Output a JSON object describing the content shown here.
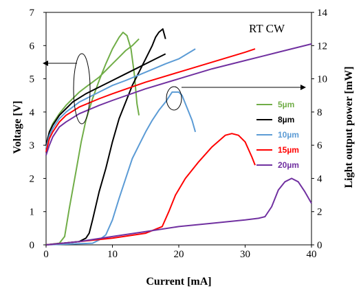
{
  "chart_data": {
    "type": "line",
    "annotation": "RT CW",
    "xlabel": "Current [mA]",
    "ylabel_left": "Voltage [V]",
    "ylabel_right": "Light output power [mW]",
    "x_ticks": [
      "0",
      "10",
      "20",
      "30",
      "40"
    ],
    "y_left_ticks": [
      "0",
      "1",
      "2",
      "3",
      "4",
      "5",
      "6",
      "7"
    ],
    "y_right_ticks": [
      "0",
      "2",
      "4",
      "6",
      "8",
      "10",
      "12",
      "14"
    ],
    "xlim": [
      0,
      40
    ],
    "ylim_left": [
      0,
      7
    ],
    "ylim_right": [
      0,
      14
    ],
    "legend_position": "right-middle",
    "series": [
      {
        "name": "5µm",
        "color": "#70ad47",
        "voltage": [
          [
            0,
            2.9
          ],
          [
            0.5,
            3.4
          ],
          [
            1,
            3.65
          ],
          [
            2,
            3.95
          ],
          [
            3,
            4.2
          ],
          [
            4,
            4.4
          ],
          [
            5,
            4.6
          ],
          [
            6,
            4.75
          ],
          [
            7,
            4.9
          ],
          [
            8,
            5.05
          ],
          [
            9,
            5.25
          ],
          [
            10,
            5.45
          ],
          [
            11,
            5.65
          ],
          [
            12,
            5.85
          ],
          [
            13,
            6.0
          ],
          [
            14,
            6.2
          ]
        ],
        "power": [
          [
            0,
            0
          ],
          [
            2,
            0.1
          ],
          [
            2.8,
            0.5
          ],
          [
            3.5,
            2.2
          ],
          [
            4.5,
            4.4
          ],
          [
            5.3,
            6.2
          ],
          [
            6,
            7.5
          ],
          [
            7,
            8.8
          ],
          [
            8,
            9.9
          ],
          [
            9,
            10.9
          ],
          [
            10,
            11.8
          ],
          [
            11,
            12.5
          ],
          [
            11.6,
            12.8
          ],
          [
            12.2,
            12.6
          ],
          [
            12.8,
            11.8
          ],
          [
            13.3,
            10.3
          ],
          [
            13.7,
            8.5
          ],
          [
            14,
            7.8
          ]
        ]
      },
      {
        "name": "8µm",
        "color": "#000000",
        "voltage": [
          [
            0,
            3.0
          ],
          [
            0.5,
            3.4
          ],
          [
            1,
            3.6
          ],
          [
            2,
            3.9
          ],
          [
            3,
            4.1
          ],
          [
            4,
            4.3
          ],
          [
            6,
            4.55
          ],
          [
            8,
            4.75
          ],
          [
            10,
            4.95
          ],
          [
            12,
            5.15
          ],
          [
            14,
            5.35
          ],
          [
            16,
            5.55
          ],
          [
            18,
            5.75
          ]
        ],
        "power": [
          [
            0,
            0
          ],
          [
            5,
            0.2
          ],
          [
            6,
            0.4
          ],
          [
            6.5,
            0.7
          ],
          [
            7,
            1.5
          ],
          [
            8,
            3.2
          ],
          [
            9,
            4.6
          ],
          [
            10,
            6.2
          ],
          [
            11,
            7.6
          ],
          [
            12,
            8.6
          ],
          [
            13,
            9.6
          ],
          [
            14,
            10.4
          ],
          [
            15,
            11.2
          ],
          [
            16,
            12.0
          ],
          [
            16.5,
            12.5
          ],
          [
            17,
            12.8
          ],
          [
            17.6,
            13.0
          ],
          [
            18,
            12.4
          ]
        ]
      },
      {
        "name": "10µm",
        "color": "#5b9bd5",
        "voltage": [
          [
            0,
            2.9
          ],
          [
            0.5,
            3.3
          ],
          [
            1,
            3.5
          ],
          [
            2,
            3.8
          ],
          [
            3,
            4.0
          ],
          [
            5,
            4.3
          ],
          [
            8,
            4.6
          ],
          [
            10,
            4.8
          ],
          [
            12,
            4.95
          ],
          [
            15,
            5.2
          ],
          [
            18,
            5.45
          ],
          [
            20,
            5.6
          ],
          [
            22.5,
            5.9
          ]
        ],
        "power": [
          [
            0,
            0
          ],
          [
            7,
            0.1
          ],
          [
            8,
            0.3
          ],
          [
            9,
            0.6
          ],
          [
            10,
            1.5
          ],
          [
            11,
            2.8
          ],
          [
            12,
            4.0
          ],
          [
            13,
            5.2
          ],
          [
            14,
            6.0
          ],
          [
            15,
            6.8
          ],
          [
            16,
            7.5
          ],
          [
            17,
            8.1
          ],
          [
            18,
            8.6
          ],
          [
            19,
            9.2
          ],
          [
            20,
            9.2
          ],
          [
            20.5,
            9.0
          ],
          [
            21,
            8.5
          ],
          [
            22,
            7.5
          ],
          [
            22.5,
            6.8
          ]
        ]
      },
      {
        "name": "15µm",
        "color": "#ff0000",
        "voltage": [
          [
            0,
            2.8
          ],
          [
            0.5,
            3.2
          ],
          [
            1,
            3.4
          ],
          [
            2,
            3.7
          ],
          [
            3,
            3.9
          ],
          [
            5,
            4.15
          ],
          [
            8,
            4.4
          ],
          [
            10,
            4.55
          ],
          [
            15,
            4.9
          ],
          [
            20,
            5.2
          ],
          [
            25,
            5.5
          ],
          [
            30,
            5.8
          ],
          [
            31.5,
            5.9
          ]
        ],
        "power": [
          [
            0,
            0
          ],
          [
            5,
            0.2
          ],
          [
            10,
            0.4
          ],
          [
            15,
            0.7
          ],
          [
            17.5,
            1.1
          ],
          [
            18.5,
            2.0
          ],
          [
            19.5,
            3.0
          ],
          [
            21,
            4.0
          ],
          [
            23,
            5.0
          ],
          [
            25,
            5.9
          ],
          [
            27,
            6.6
          ],
          [
            28,
            6.7
          ],
          [
            29,
            6.6
          ],
          [
            30,
            6.2
          ],
          [
            31,
            5.3
          ],
          [
            31.5,
            4.8
          ]
        ]
      },
      {
        "name": "20µm",
        "color": "#7030a0",
        "voltage": [
          [
            0,
            2.7
          ],
          [
            0.5,
            3.0
          ],
          [
            1,
            3.25
          ],
          [
            2,
            3.55
          ],
          [
            3,
            3.7
          ],
          [
            5,
            3.95
          ],
          [
            8,
            4.2
          ],
          [
            10,
            4.35
          ],
          [
            15,
            4.7
          ],
          [
            20,
            5.0
          ],
          [
            25,
            5.3
          ],
          [
            30,
            5.55
          ],
          [
            35,
            5.8
          ],
          [
            40,
            6.05
          ]
        ],
        "power": [
          [
            0,
            0
          ],
          [
            5,
            0.2
          ],
          [
            10,
            0.5
          ],
          [
            15,
            0.8
          ],
          [
            20,
            1.1
          ],
          [
            25,
            1.3
          ],
          [
            30,
            1.5
          ],
          [
            32,
            1.6
          ],
          [
            33,
            1.7
          ],
          [
            34,
            2.3
          ],
          [
            35,
            3.3
          ],
          [
            36,
            3.8
          ],
          [
            37,
            4.0
          ],
          [
            38,
            3.8
          ],
          [
            39,
            3.2
          ],
          [
            40,
            2.5
          ]
        ]
      }
    ]
  }
}
